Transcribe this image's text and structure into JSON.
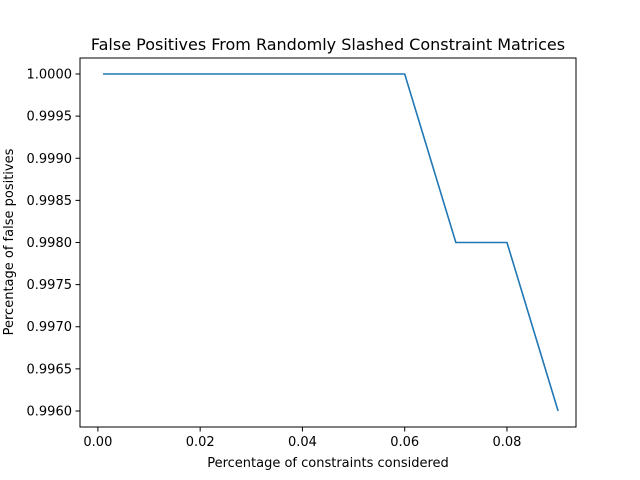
{
  "chart_data": {
    "type": "line",
    "title": "False Positives From Randomly Slashed Constraint Matrices",
    "xlabel": "Percentage of constraints considered",
    "ylabel": "Percentage of false positives",
    "xlim": [
      -0.0035,
      0.0935
    ],
    "ylim": [
      0.99581,
      1.00019
    ],
    "xticks": [
      "0.00",
      "0.02",
      "0.04",
      "0.06",
      "0.08"
    ],
    "yticks": [
      "1.0000",
      "0.9995",
      "0.9990",
      "0.9985",
      "0.9980",
      "0.9975",
      "0.9970",
      "0.9965",
      "0.9960"
    ],
    "grid": false,
    "series": [
      {
        "color": "#1f77b4",
        "x": [
          0.001,
          0.01,
          0.02,
          0.03,
          0.04,
          0.05,
          0.06,
          0.07,
          0.08,
          0.09
        ],
        "y": [
          1.0,
          1.0,
          1.0,
          1.0,
          1.0,
          1.0,
          1.0,
          0.998,
          0.998,
          0.996
        ]
      }
    ]
  }
}
